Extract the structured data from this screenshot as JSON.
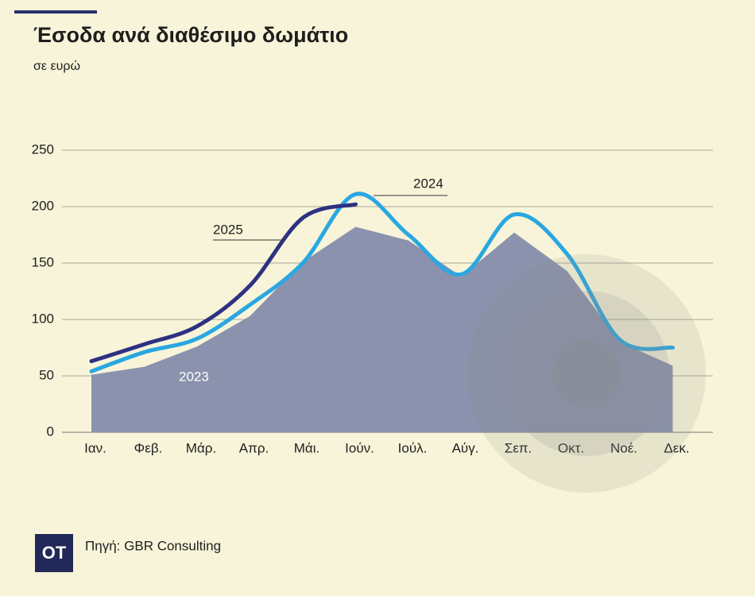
{
  "chart_data": {
    "type": "line",
    "title": "Έσοδα ανά διαθέσιμο δωμάτιο",
    "subtitle": "σε ευρώ",
    "source": "Πηγή: GBR Consulting",
    "logo": "OT",
    "categories": [
      "Ιαν.",
      "Φεβ.",
      "Μάρ.",
      "Απρ.",
      "Μάι.",
      "Ιούν.",
      "Ιούλ.",
      "Αύγ.",
      "Σεπ.",
      "Οκτ.",
      "Νοέ.",
      "Δεκ."
    ],
    "series": [
      {
        "name": "2023",
        "color": "#8a92ad",
        "style": "area",
        "values": [
          51,
          58,
          76,
          103,
          151,
          182,
          170,
          138,
          177,
          143,
          80,
          59
        ]
      },
      {
        "name": "2024",
        "color": "#2aa7e1",
        "style": "line",
        "values": [
          54,
          71,
          83,
          113,
          150,
          211,
          175,
          140,
          193,
          158,
          82,
          75
        ]
      },
      {
        "name": "2025",
        "color": "#2e3182",
        "style": "line",
        "values": [
          63,
          78,
          94,
          130,
          190,
          202,
          null,
          null,
          null,
          null,
          null,
          null
        ]
      }
    ],
    "ylim": [
      0,
      250
    ],
    "yticks": [
      0,
      50,
      100,
      150,
      200,
      250
    ],
    "grid": true
  }
}
